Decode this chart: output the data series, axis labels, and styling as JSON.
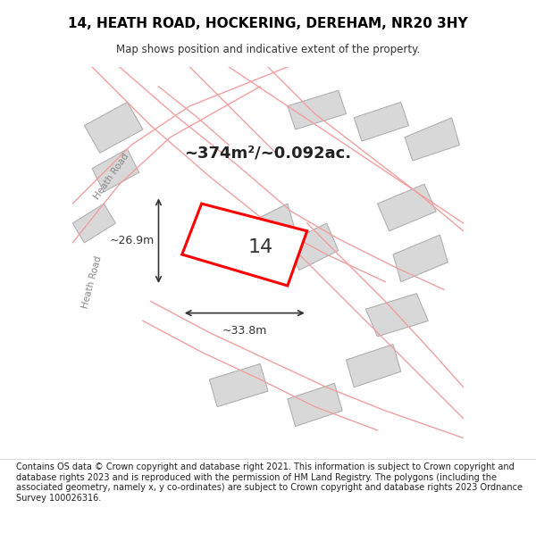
{
  "title_line1": "14, HEATH ROAD, HOCKERING, DEREHAM, NR20 3HY",
  "title_line2": "Map shows position and indicative extent of the property.",
  "area_label": "~374m²/~0.092ac.",
  "number_label": "14",
  "dim_width": "~33.8m",
  "dim_height": "~26.9m",
  "road_label1": "Heath Road",
  "road_label2": "Heath Road",
  "background_color": "#f5f5f5",
  "map_bg": "#f0eeec",
  "building_color": "#d8d8d8",
  "building_edge": "#b0b0b0",
  "road_line_color": "#f0a0a0",
  "highlight_poly_color": "#ff0000",
  "highlight_poly_fill": "none",
  "dim_line_color": "#333333",
  "footer_text": "Contains OS data © Crown copyright and database right 2021. This information is subject to Crown copyright and database rights 2023 and is reproduced with the permission of HM Land Registry. The polygons (including the associated geometry, namely x, y co-ordinates) are subject to Crown copyright and database rights 2023 Ordnance Survey 100026316.",
  "map_xlim": [
    0,
    1
  ],
  "map_ylim": [
    0,
    1
  ]
}
